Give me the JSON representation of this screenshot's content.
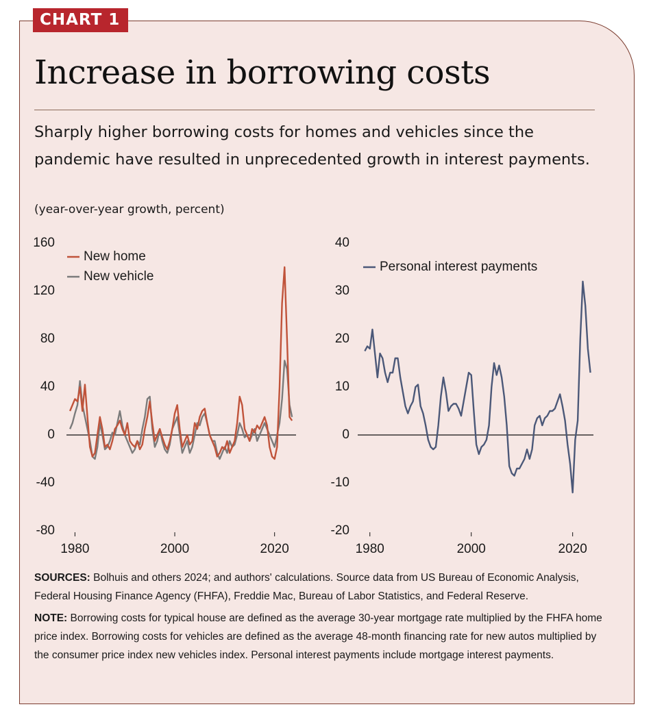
{
  "header": {
    "badge": "CHART 1",
    "title": "Increase in borrowing costs",
    "subtitle": "Sharply higher borrowing costs for homes and vehicles since the pandemic have resulted in unprecedented growth in interest payments.",
    "units": "(year-over-year growth, percent)"
  },
  "chart_data": [
    {
      "type": "line",
      "x": [
        1979,
        1979.5,
        1980,
        1980.5,
        1981,
        1981.5,
        1982,
        1982.5,
        1983,
        1983.5,
        1984,
        1984.5,
        1985,
        1985.5,
        1986,
        1986.5,
        1987,
        1987.5,
        1988,
        1988.5,
        1989,
        1989.5,
        1990,
        1990.5,
        1991,
        1991.5,
        1992,
        1992.5,
        1993,
        1993.5,
        1994,
        1994.5,
        1995,
        1995.5,
        1996,
        1996.5,
        1997,
        1997.5,
        1998,
        1998.5,
        1999,
        1999.5,
        2000,
        2000.5,
        2001,
        2001.5,
        2002,
        2002.5,
        2003,
        2003.5,
        2004,
        2004.5,
        2005,
        2005.5,
        2006,
        2006.5,
        2007,
        2007.5,
        2008,
        2008.5,
        2009,
        2009.5,
        2010,
        2010.5,
        2011,
        2011.5,
        2012,
        2012.5,
        2013,
        2013.5,
        2014,
        2014.5,
        2015,
        2015.5,
        2016,
        2016.5,
        2017,
        2017.5,
        2018,
        2018.5,
        2019,
        2019.5,
        2020,
        2020.5,
        2021,
        2021.5,
        2022,
        2022.5,
        2023,
        2023.5
      ],
      "series": [
        {
          "name": "New home",
          "color": "#c0533a",
          "values": [
            20,
            25,
            30,
            28,
            40,
            20,
            42,
            15,
            -10,
            -18,
            -15,
            0,
            15,
            5,
            -10,
            -8,
            -12,
            -5,
            5,
            8,
            12,
            5,
            0,
            10,
            -5,
            -8,
            -10,
            -5,
            -12,
            -8,
            5,
            15,
            28,
            10,
            -5,
            0,
            5,
            -2,
            -8,
            -12,
            -5,
            5,
            18,
            25,
            5,
            -10,
            -5,
            0,
            -8,
            -5,
            10,
            5,
            15,
            20,
            22,
            10,
            0,
            -5,
            -10,
            -18,
            -15,
            -10,
            -12,
            -5,
            -15,
            -10,
            -5,
            10,
            32,
            25,
            5,
            0,
            -5,
            5,
            2,
            8,
            5,
            10,
            15,
            8,
            -10,
            -18,
            -20,
            -10,
            40,
            110,
            140,
            80,
            15,
            12
          ]
        },
        {
          "name": "New vehicle",
          "color": "#7b7b7b",
          "values": [
            5,
            10,
            18,
            25,
            45,
            25,
            15,
            5,
            -5,
            -18,
            -20,
            -10,
            10,
            0,
            -12,
            -10,
            -5,
            2,
            0,
            10,
            20,
            8,
            0,
            -5,
            -10,
            -15,
            -12,
            -5,
            -8,
            5,
            15,
            30,
            32,
            5,
            -10,
            -5,
            5,
            -5,
            -12,
            -15,
            -8,
            5,
            10,
            15,
            0,
            -15,
            -10,
            -5,
            -15,
            -10,
            0,
            10,
            8,
            15,
            18,
            10,
            0,
            -5,
            -5,
            -15,
            -20,
            -15,
            -10,
            -15,
            -5,
            -10,
            -8,
            0,
            10,
            5,
            -2,
            0,
            -5,
            0,
            5,
            -5,
            0,
            5,
            10,
            5,
            0,
            -5,
            -10,
            0,
            10,
            30,
            62,
            55,
            25,
            15
          ]
        }
      ],
      "xlim": [
        1978.3,
        2024.3
      ],
      "xticks": [
        1980,
        2000,
        2020
      ],
      "ylim": [
        -80,
        160
      ],
      "yticks": [
        -80,
        -40,
        0,
        40,
        80,
        120,
        160
      ],
      "zero_line": true
    },
    {
      "type": "line",
      "x": [
        1979,
        1979.5,
        1980,
        1980.5,
        1981,
        1981.5,
        1982,
        1982.5,
        1983,
        1983.5,
        1984,
        1984.5,
        1985,
        1985.5,
        1986,
        1986.5,
        1987,
        1987.5,
        1988,
        1988.5,
        1989,
        1989.5,
        1990,
        1990.5,
        1991,
        1991.5,
        1992,
        1992.5,
        1993,
        1993.5,
        1994,
        1994.5,
        1995,
        1995.5,
        1996,
        1996.5,
        1997,
        1997.5,
        1998,
        1998.5,
        1999,
        1999.5,
        2000,
        2000.5,
        2001,
        2001.5,
        2002,
        2002.5,
        2003,
        2003.5,
        2004,
        2004.5,
        2005,
        2005.5,
        2006,
        2006.5,
        2007,
        2007.5,
        2008,
        2008.5,
        2009,
        2009.5,
        2010,
        2010.5,
        2011,
        2011.5,
        2012,
        2012.5,
        2013,
        2013.5,
        2014,
        2014.5,
        2015,
        2015.5,
        2016,
        2016.5,
        2017,
        2017.5,
        2018,
        2018.5,
        2019,
        2019.5,
        2020,
        2020.5,
        2021,
        2021.5,
        2022,
        2022.5,
        2023,
        2023.5
      ],
      "series": [
        {
          "name": "Personal interest payments",
          "color": "#4b5878",
          "values": [
            17.5,
            18.5,
            18,
            22,
            17,
            12,
            17,
            16,
            13,
            11,
            13,
            13,
            16,
            16,
            12,
            9,
            6,
            4.5,
            6,
            7,
            10,
            10.5,
            6,
            4.5,
            2,
            -1,
            -2.5,
            -3,
            -2.5,
            2,
            8,
            12,
            9,
            5,
            6,
            6.5,
            6.5,
            5.5,
            4,
            7,
            10,
            13,
            12.5,
            5,
            -2,
            -4,
            -2.5,
            -2,
            -1,
            2,
            10,
            15,
            12.5,
            14.5,
            12,
            8,
            2,
            -6.5,
            -8,
            -8.5,
            -7,
            -7,
            -6,
            -5,
            -3,
            -5,
            -3,
            2,
            3.5,
            4,
            2,
            3.5,
            4,
            5,
            5,
            5.5,
            7,
            8.5,
            6,
            3,
            -2,
            -6,
            -12,
            -1,
            3,
            20,
            32,
            27,
            18,
            13
          ]
        }
      ],
      "xlim": [
        1977.6,
        2024.1
      ],
      "xticks": [
        1980,
        2000,
        2020
      ],
      "ylim": [
        -20,
        40
      ],
      "yticks": [
        -20,
        -10,
        0,
        10,
        20,
        30,
        40
      ],
      "zero_line": true
    }
  ],
  "footer": {
    "sources_label": "SOURCES:",
    "sources": "Bolhuis and others 2024; and authors' calculations. Source data from US Bureau of Economic Analysis, Federal Housing Finance Agency (FHFA), Freddie Mac, Bureau of Labor Statistics, and Federal Reserve.",
    "note_label": "NOTE:",
    "note": "Borrowing costs for typical house are defined as the average 30-year mortgage rate multiplied by the FHFA home price index. Borrowing costs for vehicles are defined as the average 48-month financing rate for new autos multiplied by the consumer price index new vehicles index. Personal interest payments include mortgage interest payments."
  }
}
